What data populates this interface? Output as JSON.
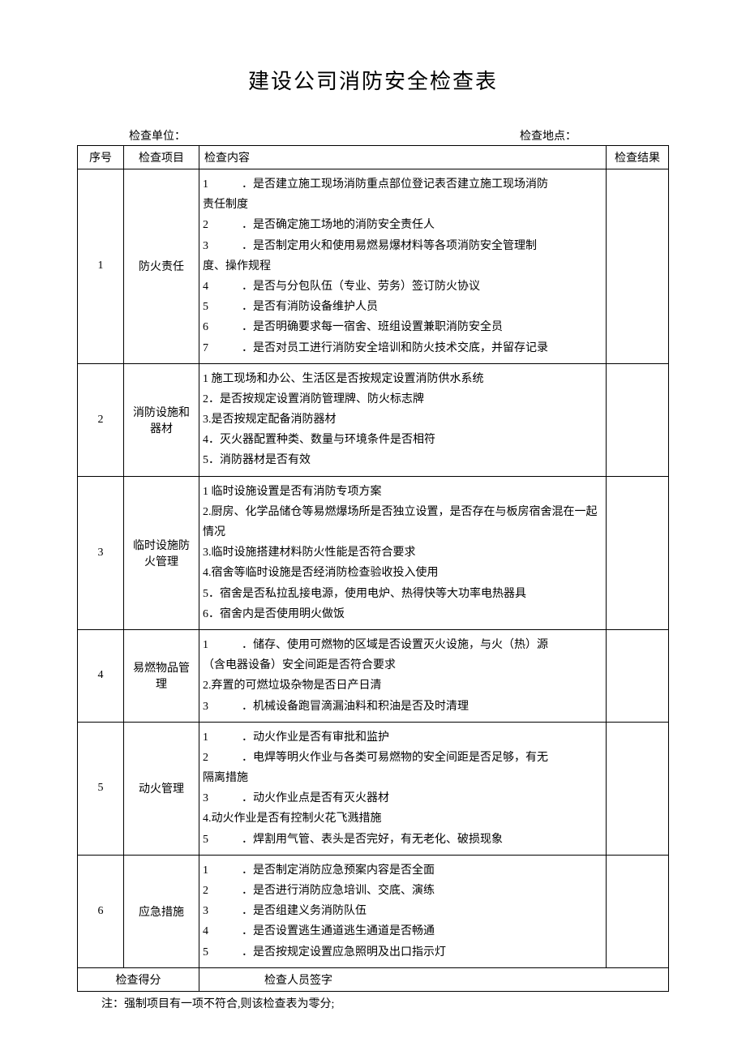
{
  "title": "建设公司消防安全检查表",
  "meta": {
    "unit_label": "检查单位：",
    "location_label": "检查地点："
  },
  "headers": {
    "seq": "序号",
    "item": "检查项目",
    "content": "检查内容",
    "result": "检查结果"
  },
  "rows": [
    {
      "seq": "1",
      "item": "防火责任",
      "lines": [
        {
          "n": "1",
          "t": "．是否建立施工现场消防重点部位登记表否建立施工现场消防",
          "indent": true
        },
        {
          "plain": "责任制度"
        },
        {
          "n": "2",
          "t": "．是否确定施工场地的消防安全责任人",
          "indent": true
        },
        {
          "n": "3",
          "t": "．是否制定用火和使用易燃易爆材料等各项消防安全管理制",
          "indent": true
        },
        {
          "plain": "度、操作规程"
        },
        {
          "n": "4",
          "t": "．是否与分包队伍（专业、劳务）签订防火协议",
          "indent": true
        },
        {
          "n": "5",
          "t": "．是否有消防设备维护人员",
          "indent": true
        },
        {
          "n": "6",
          "t": "．是否明确要求每一宿舍、班组设置兼职消防安全员",
          "indent": true
        },
        {
          "n": "7",
          "t": "．是否对员工进行消防安全培训和防火技术交底，并留存记录",
          "indent": true
        }
      ]
    },
    {
      "seq": "2",
      "item": "消防设施和器材",
      "lines": [
        {
          "plain": "1 施工现场和办公、生活区是否按规定设置消防供水系统"
        },
        {
          "plain": "2．是否按规定设置消防管理牌、防火标志牌"
        },
        {
          "plain": "3.是否按规定配备消防器材"
        },
        {
          "plain": "4．灭火器配置种类、数量与环境条件是否相符"
        },
        {
          "plain": "5．消防器材是否有效"
        }
      ]
    },
    {
      "seq": "3",
      "item": "临时设施防火管理",
      "lines": [
        {
          "plain": "1 临时设施设置是否有消防专项方案"
        },
        {
          "plain": "2.厨房、化学品储仓等易燃爆场所是否独立设置，是否存在与板房宿舍混在一起情况"
        },
        {
          "plain": "3.临时设施搭建材料防火性能是否符合要求"
        },
        {
          "plain": "4.宿舍等临时设施是否经消防检查验收投入使用"
        },
        {
          "plain": "5．宿舍是否私拉乱接电源，使用电炉、热得快等大功率电热器具"
        },
        {
          "plain": "6．宿舍内是否使用明火做饭"
        }
      ]
    },
    {
      "seq": "4",
      "item": "易燃物品管理",
      "lines": [
        {
          "n": "1",
          "t": "．储存、使用可燃物的区域是否设置灭火设施，与火（热）源",
          "indent": true
        },
        {
          "plain": "（含电器设备）安全间距是否符合要求"
        },
        {
          "plain": "2.弃置的可燃垃圾杂物是否日产日清"
        },
        {
          "n": "3",
          "t": "．机械设备跑冒滴漏油料和积油是否及时清理",
          "indent": true
        }
      ]
    },
    {
      "seq": "5",
      "item": "动火管理",
      "lines": [
        {
          "n": "1",
          "t": "．动火作业是否有审批和监护",
          "indent": true
        },
        {
          "n": "2",
          "t": "．电焊等明火作业与各类可易燃物的安全间距是否足够，有无",
          "indent": true
        },
        {
          "plain": "隔离措施"
        },
        {
          "n": "3",
          "t": "．动火作业点是否有灭火器材",
          "indent": true
        },
        {
          "plain": "4.动火作业是否有控制火花飞溅措施"
        },
        {
          "n": "5",
          "t": "．焊割用气管、表头是否完好，有无老化、破损现象",
          "indent": true
        }
      ]
    },
    {
      "seq": "6",
      "item": "应急措施",
      "lines": [
        {
          "n": "1",
          "t": "．是否制定消防应急预案内容是否全面",
          "indent": true
        },
        {
          "n": "2",
          "t": "．是否进行消防应急培训、交底、演练",
          "indent": true
        },
        {
          "n": "3",
          "t": "．是否组建义务消防队伍",
          "indent": true
        },
        {
          "n": "4",
          "t": "．是否设置逃生通道逃生通道是否畅通",
          "indent": true
        },
        {
          "n": "5",
          "t": "．是否按规定设置应急照明及出口指示灯",
          "indent": true
        }
      ]
    }
  ],
  "footer": {
    "score_label": "检查得分",
    "sign_label": "检查人员签字"
  },
  "note": "注：强制项目有一项不符合,则该检查表为零分;",
  "style": {
    "background_color": "#ffffff",
    "text_color": "#000000",
    "border_color": "#000000",
    "title_fontsize": 26,
    "body_fontsize": 14,
    "line_height": 1.8,
    "col_widths": {
      "seq": 44,
      "item": 80,
      "result": 64
    }
  }
}
